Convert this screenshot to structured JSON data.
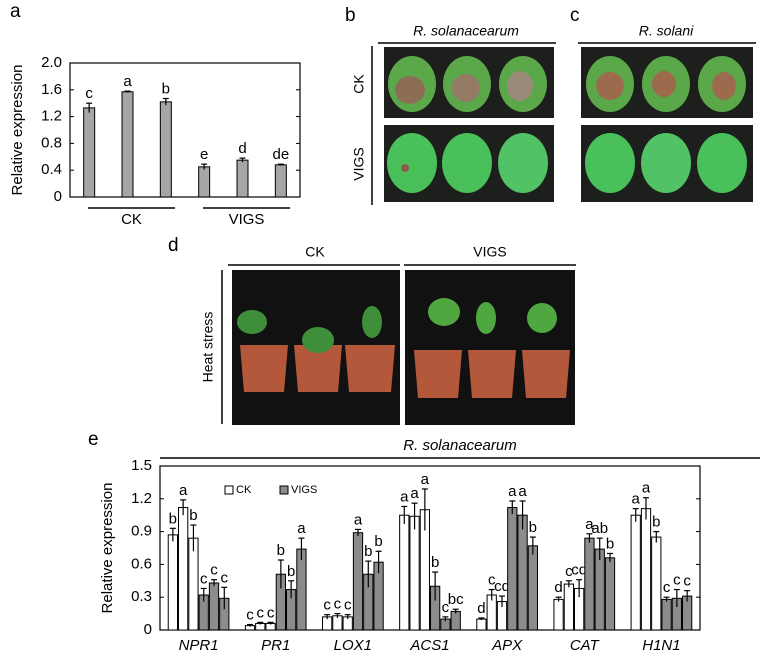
{
  "panels": {
    "b": {
      "label": "b",
      "title": "R. solanacearum",
      "rows": [
        "CK",
        "VIGS"
      ]
    },
    "c": {
      "label": "c",
      "title": "R. solani"
    },
    "d": {
      "label": "d",
      "columns": [
        "CK",
        "VIGS"
      ],
      "side": "Heat stress"
    }
  },
  "chart_data": [
    {
      "type": "bar",
      "panel": "a",
      "y_label": "Relative expression",
      "categories": [
        null,
        null,
        null,
        null,
        null,
        null
      ],
      "group_labels": [
        "CK",
        "VIGS"
      ],
      "values": [
        1.33,
        1.57,
        1.42,
        0.45,
        0.55,
        0.48
      ],
      "errors": [
        0.07,
        0.01,
        0.05,
        0.04,
        0.03,
        0.01
      ],
      "letters": [
        "c",
        "a",
        "b",
        "e",
        "d",
        "de"
      ],
      "color": "#a6a6a6",
      "ylim": [
        0,
        2
      ],
      "yticks": [
        0,
        0.4,
        0.8,
        1.2,
        1.6,
        {
          "value": 2,
          "label": "2.0"
        }
      ]
    },
    {
      "type": "bar",
      "panel": "e",
      "title": "R. solanacearum",
      "y_label": "Relative expression",
      "categories": [
        "NPR1",
        "PR1",
        "LOX1",
        "ACS1",
        "APX",
        "CAT",
        "H1N1"
      ],
      "series": [
        {
          "name": "CK",
          "color": "#ffffff",
          "values": [
            [
              0.87,
              1.12,
              0.84
            ],
            [
              0.04,
              0.06,
              0.06
            ],
            [
              0.12,
              0.13,
              0.12
            ],
            [
              1.05,
              1.04,
              1.1
            ],
            [
              0.1,
              0.32,
              0.26
            ],
            [
              0.28,
              0.42,
              0.38
            ],
            [
              1.05,
              1.11,
              0.85
            ]
          ],
          "errors": [
            [
              0.06,
              0.07,
              0.12
            ],
            [
              0.01,
              0.01,
              0.01
            ],
            [
              0.02,
              0.02,
              0.02
            ],
            [
              0.08,
              0.12,
              0.19
            ],
            [
              0.01,
              0.05,
              0.05
            ],
            [
              0.02,
              0.03,
              0.08
            ],
            [
              0.06,
              0.1,
              0.05
            ]
          ],
          "letters": [
            [
              "b",
              "a",
              "b"
            ],
            [
              "c",
              "c",
              "c"
            ],
            [
              "c",
              "c",
              "c"
            ],
            [
              "a",
              "a",
              "a"
            ],
            [
              "d",
              "c",
              "cd"
            ],
            [
              "d",
              "c",
              "cd"
            ],
            [
              "a",
              "a",
              "b"
            ]
          ]
        },
        {
          "name": "VIGS",
          "color": "#8c8c8c",
          "values": [
            [
              0.32,
              0.43,
              0.29
            ],
            [
              0.51,
              0.37,
              0.74
            ],
            [
              0.89,
              0.51,
              0.62
            ],
            [
              0.4,
              0.1,
              0.17
            ],
            [
              1.12,
              1.05,
              0.77
            ],
            [
              0.84,
              0.74,
              0.66
            ],
            [
              0.28,
              0.29,
              0.31
            ]
          ],
          "errors": [
            [
              0.06,
              0.03,
              0.1
            ],
            [
              0.13,
              0.08,
              0.1
            ],
            [
              0.03,
              0.12,
              0.1
            ],
            [
              0.13,
              0.02,
              0.02
            ],
            [
              0.06,
              0.13,
              0.08
            ],
            [
              0.04,
              0.1,
              0.04
            ],
            [
              0.02,
              0.08,
              0.05
            ]
          ],
          "letters": [
            [
              "c",
              "c",
              "c"
            ],
            [
              "b",
              "b",
              "a"
            ],
            [
              "a",
              "b",
              "b"
            ],
            [
              "b",
              "c",
              "bc"
            ],
            [
              "a",
              "a",
              "b"
            ],
            [
              "a",
              "ab",
              "b"
            ],
            [
              "c",
              "c",
              "c"
            ]
          ]
        }
      ],
      "ylim": [
        0,
        1.5
      ],
      "yticks": [
        0,
        0.3,
        0.6,
        0.9,
        1.2,
        1.5
      ]
    }
  ]
}
